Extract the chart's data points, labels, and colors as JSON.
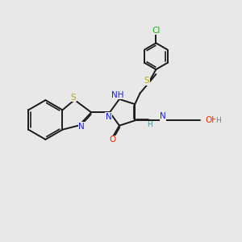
{
  "bg_color": "#e8e8e8",
  "bond_color": "#1a1a1a",
  "bond_width": 1.4,
  "dbo": 0.05,
  "atom_colors": {
    "N": "#1a1aff",
    "S": "#bbaa00",
    "O": "#ff2200",
    "Cl": "#22aa22",
    "C": "#1a1a1a",
    "H": "#4a9090"
  },
  "fs": 7.5,
  "fs_small": 6.5,
  "fig_size": [
    3.0,
    3.0
  ],
  "dpi": 100
}
